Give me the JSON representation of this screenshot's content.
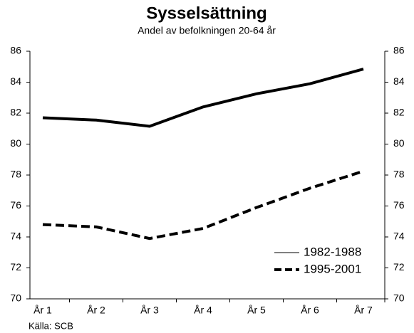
{
  "chart_data": {
    "type": "line",
    "title": "Sysselsättning",
    "subtitle": "Andel av befolkningen 20-64 år",
    "source": "Källa: SCB",
    "categories": [
      "År 1",
      "År 2",
      "År 3",
      "År 4",
      "År 5",
      "År 6",
      "År 7"
    ],
    "series": [
      {
        "name": "1982-1988",
        "color": "#000000",
        "dash": "solid",
        "values": [
          81.7,
          81.55,
          81.15,
          82.4,
          83.25,
          83.9,
          84.85
        ]
      },
      {
        "name": "1995-2001",
        "color": "#000000",
        "dash": "dashed",
        "values": [
          74.8,
          74.65,
          73.9,
          74.55,
          75.9,
          77.15,
          78.25
        ]
      }
    ],
    "ylim": [
      70,
      86
    ],
    "yticks": [
      70,
      72,
      74,
      76,
      78,
      80,
      82,
      84,
      86
    ],
    "y2lim": [
      70,
      86
    ],
    "y2ticks": [
      70,
      72,
      74,
      76,
      78,
      80,
      82,
      84,
      86
    ],
    "grid": false,
    "legend": "lower right"
  }
}
